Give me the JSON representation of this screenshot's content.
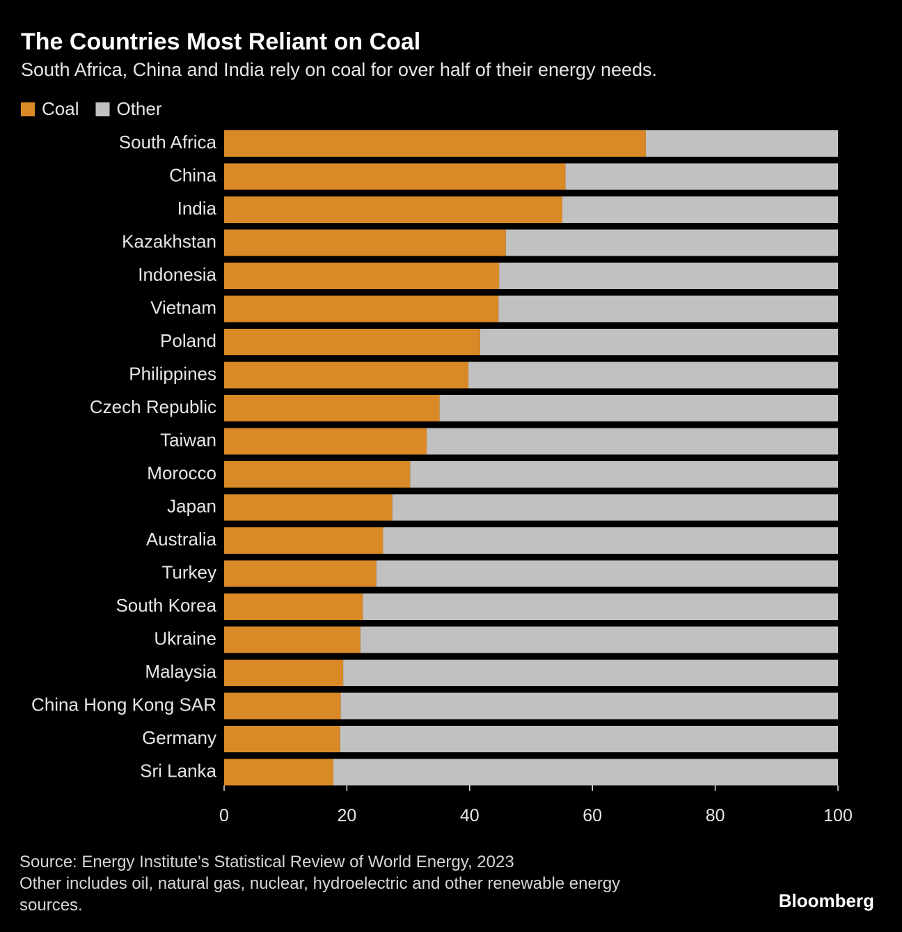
{
  "chart_data": {
    "type": "stacked-bar-horizontal",
    "title": "The Countries Most Reliant on Coal",
    "subtitle": "South Africa, China and India rely on coal for over half of their energy needs.",
    "categories": [
      "South Africa",
      "China",
      "India",
      "Kazakhstan",
      "Indonesia",
      "Vietnam",
      "Poland",
      "Philippines",
      "Czech Republic",
      "Taiwan",
      "Morocco",
      "Japan",
      "Australia",
      "Turkey",
      "South Korea",
      "Ukraine",
      "Malaysia",
      "China Hong Kong SAR",
      "Germany",
      "Sri Lanka"
    ],
    "series": [
      {
        "name": "Coal",
        "color": "#d98a26",
        "values": [
          68.7,
          55.6,
          55.1,
          45.9,
          44.8,
          44.7,
          41.7,
          39.8,
          35.1,
          33.0,
          30.3,
          27.4,
          25.9,
          24.8,
          22.6,
          22.2,
          19.4,
          19.0,
          18.9,
          17.8
        ]
      },
      {
        "name": "Other",
        "color": "#c1c1c1",
        "values": [
          31.3,
          44.4,
          44.9,
          54.1,
          55.2,
          55.3,
          58.3,
          60.2,
          64.9,
          67.0,
          69.7,
          72.6,
          74.1,
          75.2,
          77.4,
          77.8,
          80.6,
          81.0,
          81.1,
          82.2
        ]
      }
    ],
    "xlim": [
      0,
      100
    ],
    "xticks": [
      0,
      20,
      40,
      60,
      80,
      100
    ],
    "grid": false,
    "legend": "top-left",
    "source": "Source: Energy Institute's Statistical Review of World Energy, 2023",
    "note": "Other includes oil, natural gas, nuclear, hydroelectric and other renewable energy sources.",
    "brand": "Bloomberg"
  }
}
